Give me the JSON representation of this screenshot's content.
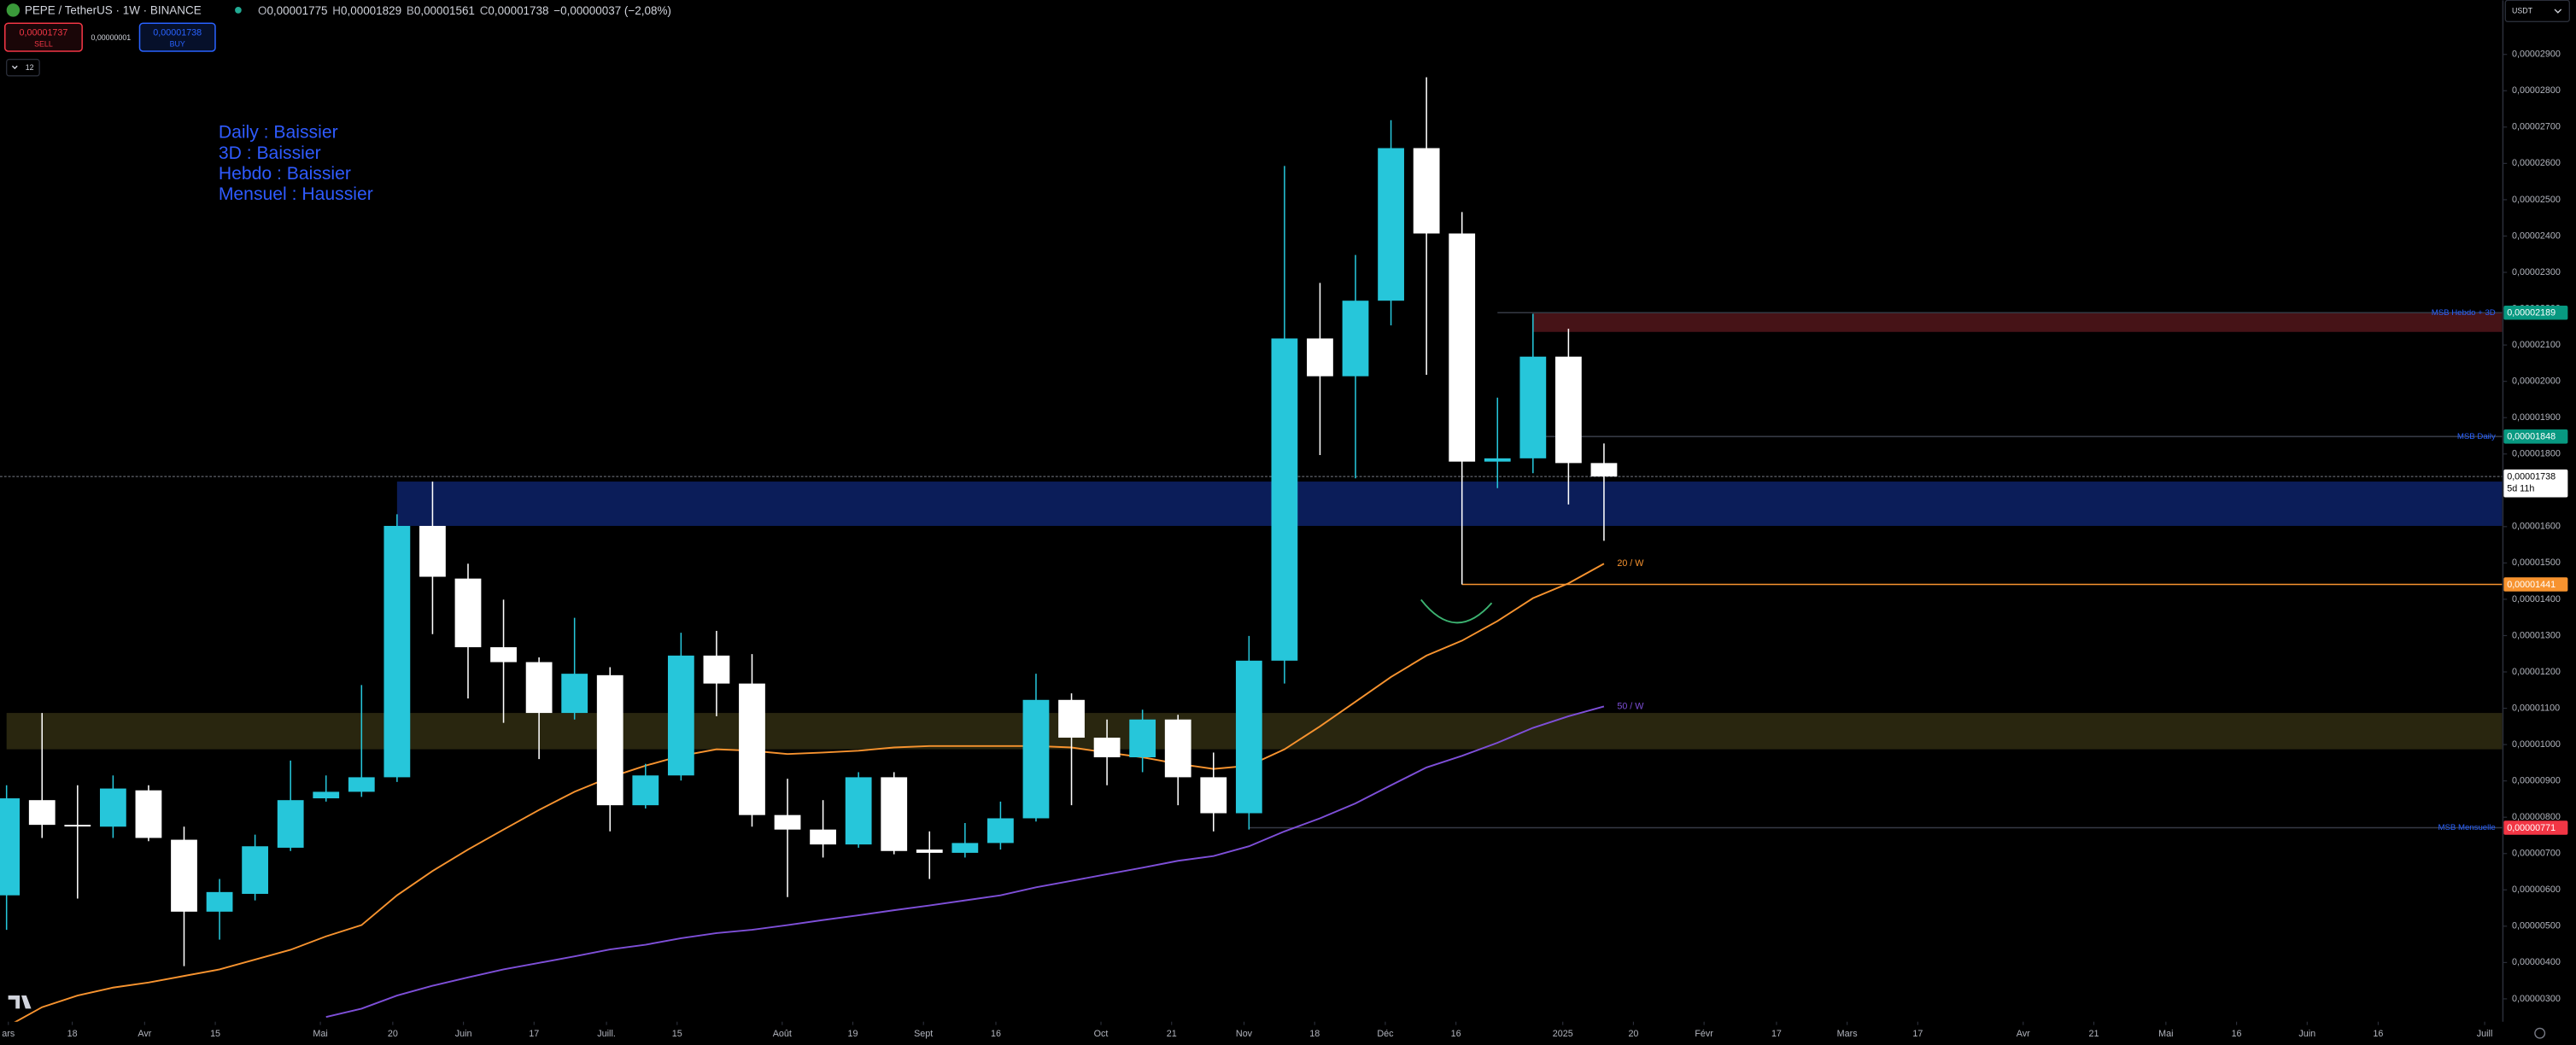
{
  "header": {
    "symbol": "PEPE / TetherUS · 1W · BINANCE",
    "ohlc": [
      {
        "key": "O",
        "value": "0,00001775"
      },
      {
        "key": "H",
        "value": "0,00001829"
      },
      {
        "key": "B",
        "value": "0,00001561"
      },
      {
        "key": "C",
        "value": "0,00001738"
      }
    ],
    "change": "−0,00000037 (−2,08%)"
  },
  "toolbar": {
    "sell_price": "0,00001737",
    "sell": "SELL",
    "spread": "0,00000001",
    "buy_price": "0,00001738",
    "buy": "BUY",
    "indicators_count": "12",
    "currency": "USDT"
  },
  "chart_data": {
    "type": "candlestick",
    "title": "PEPE / TetherUS · 1W · BINANCE",
    "up_color": "#26c6da",
    "down_color": "#ffffff",
    "categories": [
      null,
      null,
      null,
      null,
      null,
      null,
      null,
      null,
      null,
      null,
      null,
      null,
      null,
      null,
      null,
      null,
      null,
      null,
      null,
      null,
      null,
      null,
      null,
      null,
      null,
      null,
      null,
      null,
      null,
      null,
      null,
      null,
      null,
      null,
      null,
      null,
      null,
      null,
      null,
      null,
      null,
      null,
      null,
      null,
      null,
      null
    ],
    "open": [
      5.85e-06,
      8.47e-06,
      7.79e-06,
      7.74e-06,
      8.74e-06,
      7.38e-06,
      5.4e-06,
      5.89e-06,
      7.16e-06,
      8.52e-06,
      8.7e-06,
      9.1e-06,
      1.602e-05,
      1.457e-05,
      1.268e-05,
      1.227e-05,
      1.087e-05,
      1.191e-05,
      8.33e-06,
      9.15e-06,
      1.245e-05,
      1.168e-05,
      8.06e-06,
      7.66e-06,
      7.25e-06,
      9.1e-06,
      7.11e-06,
      7.02e-06,
      7.29e-06,
      7.97e-06,
      1.123e-05,
      1.019e-05,
      9.65e-06,
      1.069e-05,
      9.1e-06,
      8.11e-06,
      1.231e-05,
      2.118e-05,
      2.014e-05,
      2.222e-05,
      2.642e-05,
      2.407e-05,
      1.779e-05,
      1.788e-05,
      2.068e-05,
      1.775e-05
    ],
    "high": [
      8.88e-06,
      1.087e-05,
      8.88e-06,
      9.15e-06,
      8.88e-06,
      7.74e-06,
      6.3e-06,
      7.52e-06,
      9.56e-06,
      9.15e-06,
      1.164e-05,
      1.634e-05,
      1.724e-05,
      1.498e-05,
      1.399e-05,
      1.24e-05,
      1.349e-05,
      1.213e-05,
      9.47e-06,
      1.308e-05,
      1.313e-05,
      1.249e-05,
      9.06e-06,
      8.47e-06,
      9.24e-06,
      9.24e-06,
      7.61e-06,
      7.84e-06,
      8.43e-06,
      1.195e-05,
      1.141e-05,
      1.069e-05,
      1.096e-05,
      1.082e-05,
      9.78e-06,
      1.299e-05,
      2.593e-05,
      2.271e-05,
      2.348e-05,
      2.719e-05,
      2.837e-05,
      2.466e-05,
      1.955e-05,
      2.186e-05,
      2.145e-05,
      1.829e-05
    ],
    "low": [
      4.9e-06,
      7.43e-06,
      5.76e-06,
      7.43e-06,
      7.34e-06,
      3.9e-06,
      4.63e-06,
      5.71e-06,
      7.07e-06,
      8.43e-06,
      8.56e-06,
      8.97e-06,
      1.304e-05,
      1.127e-05,
      1.06e-05,
      9.6e-06,
      1.069e-05,
      7.61e-06,
      8.24e-06,
      9.01e-06,
      1.078e-05,
      7.74e-06,
      5.8e-06,
      6.89e-06,
      7.16e-06,
      6.98e-06,
      6.3e-06,
      6.89e-06,
      7.11e-06,
      7.88e-06,
      8.33e-06,
      8.88e-06,
      9.24e-06,
      8.33e-06,
      7.61e-06,
      7.66e-06,
      1.168e-05,
      1.797e-05,
      1.733e-05,
      2.154e-05,
      2.018e-05,
      1.441e-05,
      1.706e-05,
      1.747e-05,
      1.661e-05,
      1.561e-05
    ],
    "close": [
      8.52e-06,
      7.79e-06,
      7.77e-06,
      8.79e-06,
      7.43e-06,
      5.4e-06,
      5.94e-06,
      7.2e-06,
      8.47e-06,
      8.7e-06,
      9.1e-06,
      1.602e-05,
      1.462e-05,
      1.268e-05,
      1.227e-05,
      1.087e-05,
      1.195e-05,
      8.33e-06,
      9.15e-06,
      1.245e-05,
      1.168e-05,
      8.06e-06,
      7.66e-06,
      7.25e-06,
      9.1e-06,
      7.07e-06,
      7.02e-06,
      7.29e-06,
      7.97e-06,
      1.123e-05,
      1.019e-05,
      9.65e-06,
      1.069e-05,
      9.1e-06,
      8.11e-06,
      1.231e-05,
      2.118e-05,
      2.014e-05,
      2.222e-05,
      2.642e-05,
      2.407e-05,
      1.779e-05,
      1.788e-05,
      2.068e-05,
      1.775e-05,
      1.738e-05
    ],
    "indicators": [
      {
        "name": "20 / W",
        "color": "#f7932f",
        "values": [
          2.23e-06,
          2.77e-06,
          3.09e-06,
          3.31e-06,
          3.45e-06,
          3.63e-06,
          3.81e-06,
          4.08e-06,
          4.35e-06,
          4.72e-06,
          5.03e-06,
          5.85e-06,
          6.52e-06,
          7.11e-06,
          7.66e-06,
          8.2e-06,
          8.7e-06,
          9.1e-06,
          9.42e-06,
          9.69e-06,
          9.87e-06,
          9.83e-06,
          9.74e-06,
          9.78e-06,
          9.83e-06,
          9.92e-06,
          9.96e-06,
          9.96e-06,
          9.96e-06,
          9.96e-06,
          9.92e-06,
          9.78e-06,
          9.65e-06,
          9.47e-06,
          9.33e-06,
          9.42e-06,
          9.87e-06,
          1.05e-05,
          1.118e-05,
          1.186e-05,
          1.245e-05,
          1.286e-05,
          1.34e-05,
          1.403e-05,
          1.444e-05,
          1.498e-05
        ]
      },
      {
        "name": "50 / W",
        "color": "#7e4fd8",
        "values": [
          null,
          null,
          null,
          null,
          null,
          null,
          null,
          null,
          null,
          2.5e-06,
          2.73e-06,
          3.09e-06,
          3.36e-06,
          3.59e-06,
          3.81e-06,
          3.99e-06,
          4.17e-06,
          4.36e-06,
          4.49e-06,
          4.67e-06,
          4.81e-06,
          4.9e-06,
          5.03e-06,
          5.17e-06,
          5.3e-06,
          5.44e-06,
          5.57e-06,
          5.71e-06,
          5.85e-06,
          6.07e-06,
          6.25e-06,
          6.43e-06,
          6.61e-06,
          6.8e-06,
          6.93e-06,
          7.2e-06,
          7.61e-06,
          7.97e-06,
          8.38e-06,
          8.88e-06,
          9.37e-06,
          9.69e-06,
          1.005e-05,
          1.046e-05,
          1.078e-05,
          1.105e-05
        ]
      }
    ],
    "zones": [
      {
        "top": 2.189e-05,
        "bottom": 2.136e-05,
        "from": 43,
        "color": "#4a1418"
      },
      {
        "top": 1.724e-05,
        "bottom": 1.602e-05,
        "from": 11,
        "color": "#0c1f5e"
      },
      {
        "top": 1.087e-05,
        "bottom": 9.87e-06,
        "from": 0,
        "color": "#2b2810"
      }
    ],
    "levels": [
      {
        "name": "MSB Hebdo + 3D",
        "value": 2.189e-05,
        "label": "0,00002189",
        "from": 42,
        "color": "#089981",
        "line_color": "#363a45"
      },
      {
        "name": "MSB Daily",
        "value": 1.848e-05,
        "label": "0,00001848",
        "from": 43,
        "color": "#089981",
        "line_color": "#363a45"
      },
      {
        "value": 1.441e-05,
        "label": "0,00001441",
        "from": 41,
        "color": "#f7932f",
        "line_color": "#f7932f"
      },
      {
        "name": "MSB Mensuelle",
        "value": 7.71e-06,
        "label": "0,00000771",
        "from": 35,
        "color": "#f23645",
        "line_color": "#363a45"
      }
    ],
    "last_price": {
      "value": 1.738e-05,
      "label": "0,00001738",
      "countdown": "5d 11h"
    },
    "notes": [
      "Daily : Baissier",
      "3D : Baissier",
      "Hebdo : Baissier",
      "Mensuel : Haussier"
    ],
    "notes_color": "#2f5bff",
    "level_name_color": "#2962ff",
    "ylim": [
      2.37e-06,
      3.049e-05
    ],
    "yticks": [
      {
        "value": 3e-06,
        "label": "0,00000300"
      },
      {
        "value": 4e-06,
        "label": "0,00000400"
      },
      {
        "value": 5e-06,
        "label": "0,00000500"
      },
      {
        "value": 6e-06,
        "label": "0,00000600"
      },
      {
        "value": 7e-06,
        "label": "0,00000700"
      },
      {
        "value": 8e-06,
        "label": "0,00000800"
      },
      {
        "value": 9e-06,
        "label": "0,00000900"
      },
      {
        "value": 1e-05,
        "label": "0,00001000"
      },
      {
        "value": 1.1e-05,
        "label": "0,00001100"
      },
      {
        "value": 1.2e-05,
        "label": "0,00001200"
      },
      {
        "value": 1.3e-05,
        "label": "0,00001300"
      },
      {
        "value": 1.4e-05,
        "label": "0,00001400"
      },
      {
        "value": 1.5e-05,
        "label": "0,00001500"
      },
      {
        "value": 1.6e-05,
        "label": "0,00001600"
      },
      {
        "value": 1.7e-05,
        "label": "0,00001700"
      },
      {
        "value": 1.8e-05,
        "label": "0,00001800"
      },
      {
        "value": 1.9e-05,
        "label": "0,00001900"
      },
      {
        "value": 2e-05,
        "label": "0,00002000"
      },
      {
        "value": 2.1e-05,
        "label": "0,00002100"
      },
      {
        "value": 2.2e-05,
        "label": "0,00002200"
      },
      {
        "value": 2.3e-05,
        "label": "0,00002300"
      },
      {
        "value": 2.4e-05,
        "label": "0,00002400"
      },
      {
        "value": 2.5e-05,
        "label": "0,00002500"
      },
      {
        "value": 2.6e-05,
        "label": "0,00002600"
      },
      {
        "value": 2.7e-05,
        "label": "0,00002700"
      },
      {
        "value": 2.8e-05,
        "label": "0,00002800"
      },
      {
        "value": 2.9e-05,
        "label": "0,00002900"
      }
    ],
    "xlim": [
      -0.185,
      70.3
    ],
    "xticks": [
      {
        "value": 0.05,
        "label": "ars"
      },
      {
        "value": 1.85,
        "label": "18"
      },
      {
        "value": 3.89,
        "label": "Avr"
      },
      {
        "value": 5.88,
        "label": "15"
      },
      {
        "value": 8.84,
        "label": "Mai"
      },
      {
        "value": 10.88,
        "label": "20"
      },
      {
        "value": 12.87,
        "label": "Juin"
      },
      {
        "value": 14.86,
        "label": "17"
      },
      {
        "value": 16.9,
        "label": "Juill."
      },
      {
        "value": 18.89,
        "label": "15"
      },
      {
        "value": 21.85,
        "label": "Août"
      },
      {
        "value": 23.84,
        "label": "19"
      },
      {
        "value": 25.83,
        "label": "Sept"
      },
      {
        "value": 27.87,
        "label": "16"
      },
      {
        "value": 30.83,
        "label": "Oct"
      },
      {
        "value": 32.82,
        "label": "21"
      },
      {
        "value": 34.86,
        "label": "Nov"
      },
      {
        "value": 36.85,
        "label": "18"
      },
      {
        "value": 38.84,
        "label": "Déc"
      },
      {
        "value": 40.83,
        "label": "16"
      },
      {
        "value": 43.84,
        "label": "2025"
      },
      {
        "value": 45.83,
        "label": "20"
      },
      {
        "value": 47.82,
        "label": "Févr"
      },
      {
        "value": 49.86,
        "label": "17"
      },
      {
        "value": 51.85,
        "label": "Mars"
      },
      {
        "value": 53.84,
        "label": "17"
      },
      {
        "value": 56.81,
        "label": "Avr"
      },
      {
        "value": 58.8,
        "label": "21"
      },
      {
        "value": 60.83,
        "label": "Mai"
      },
      {
        "value": 62.82,
        "label": "16"
      },
      {
        "value": 64.81,
        "label": "Juin"
      },
      {
        "value": 66.81,
        "label": "16"
      },
      {
        "value": 69.81,
        "label": "Juill"
      }
    ],
    "grid": false
  }
}
